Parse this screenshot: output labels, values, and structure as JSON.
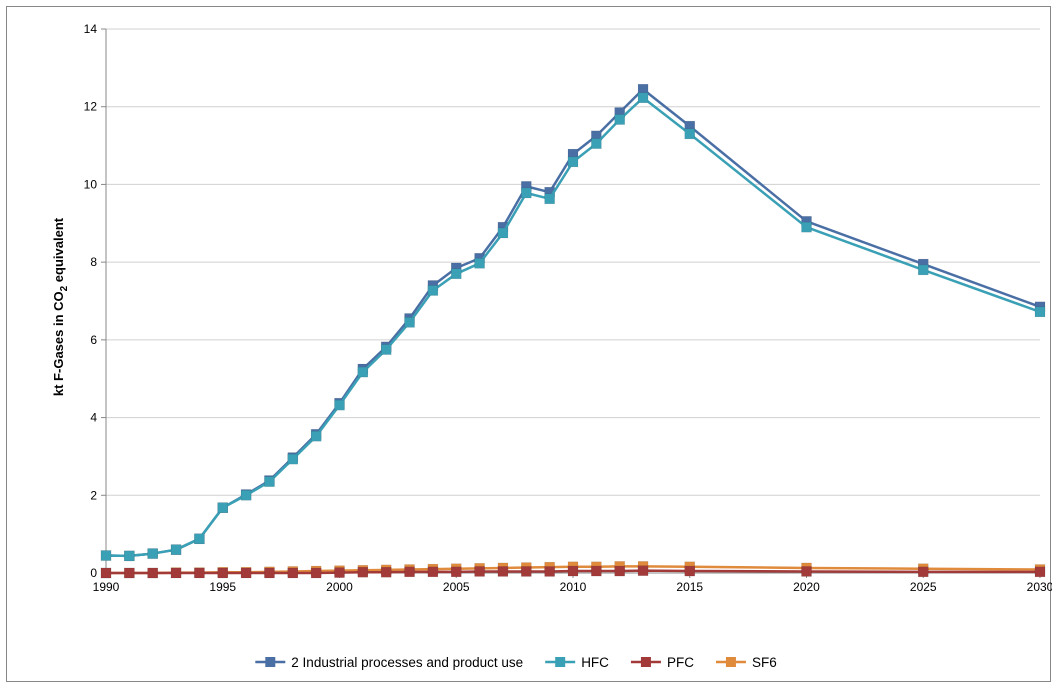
{
  "chart_data": {
    "type": "line",
    "title": "",
    "xlabel": "",
    "ylabel": "kt F-Gases in CO2 equivalent",
    "ylabel_parts": [
      "kt F-Gases in CO",
      "2",
      " equivalent"
    ],
    "ylim": [
      0,
      14
    ],
    "yticks": [
      0,
      2,
      4,
      6,
      8,
      10,
      12,
      14
    ],
    "xlim": [
      1990,
      2030
    ],
    "xticks": [
      1990,
      1995,
      2000,
      2005,
      2010,
      2015,
      2020,
      2025,
      2030
    ],
    "grid": "horizontal",
    "legend_position": "bottom",
    "x": [
      1990,
      1991,
      1992,
      1993,
      1994,
      1995,
      1996,
      1997,
      1998,
      1999,
      2000,
      2001,
      2002,
      2003,
      2004,
      2005,
      2006,
      2007,
      2008,
      2009,
      2010,
      2011,
      2012,
      2013,
      2015,
      2020,
      2025,
      2030
    ],
    "series": [
      {
        "name": "2 Industrial processes and product use",
        "color": "#4a6fa5",
        "values": [
          0.45,
          0.44,
          0.5,
          0.6,
          0.88,
          1.68,
          2.02,
          2.38,
          2.97,
          3.57,
          4.37,
          5.25,
          5.82,
          6.55,
          7.4,
          7.85,
          8.1,
          8.9,
          9.95,
          9.8,
          10.78,
          11.25,
          11.85,
          12.45,
          11.5,
          9.05,
          7.95,
          6.85
        ]
      },
      {
        "name": "HFC",
        "color": "#3aa0b5",
        "values": [
          0.45,
          0.44,
          0.5,
          0.6,
          0.88,
          1.68,
          2.0,
          2.35,
          2.93,
          3.52,
          4.32,
          5.17,
          5.75,
          6.45,
          7.27,
          7.7,
          7.97,
          8.75,
          9.78,
          9.63,
          10.58,
          11.05,
          11.67,
          12.23,
          11.3,
          8.9,
          7.8,
          6.72
        ]
      },
      {
        "name": "PFC",
        "color": "#a33a3a",
        "values": [
          0,
          0,
          0,
          0,
          0,
          0,
          0,
          0,
          0,
          0,
          0.01,
          0.02,
          0.02,
          0.03,
          0.03,
          0.03,
          0.04,
          0.04,
          0.04,
          0.04,
          0.05,
          0.05,
          0.05,
          0.06,
          0.05,
          0.04,
          0.03,
          0.03
        ]
      },
      {
        "name": "SF6",
        "color": "#e08a3c",
        "values": [
          0.0,
          0.0,
          0.0,
          0.01,
          0.01,
          0.02,
          0.02,
          0.03,
          0.04,
          0.05,
          0.06,
          0.07,
          0.08,
          0.09,
          0.1,
          0.11,
          0.12,
          0.13,
          0.14,
          0.15,
          0.16,
          0.16,
          0.17,
          0.17,
          0.16,
          0.13,
          0.11,
          0.09
        ]
      }
    ]
  }
}
